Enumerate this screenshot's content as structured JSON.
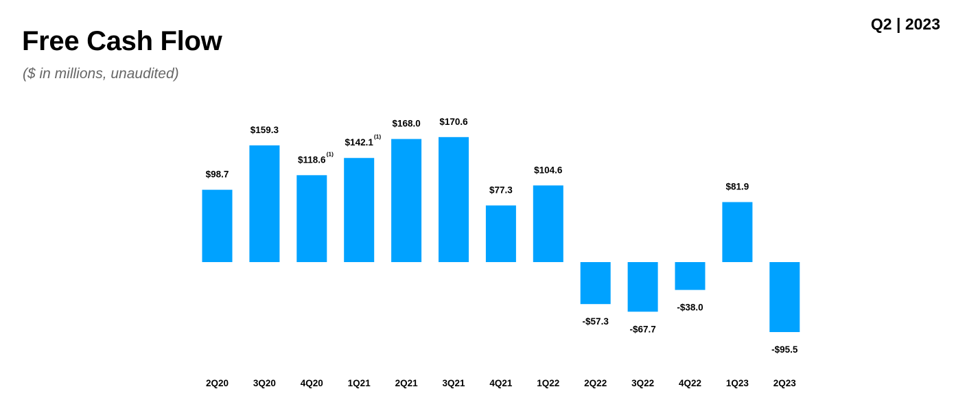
{
  "header": {
    "title": "Free Cash Flow",
    "subtitle": "($ in millions, unaudited)",
    "period": "Q2 | 2023"
  },
  "chart_data": {
    "type": "bar",
    "title": "Free Cash Flow",
    "subtitle": "($ in millions, unaudited)",
    "xlabel": "",
    "ylabel": "",
    "categories": [
      "2Q20",
      "3Q20",
      "4Q20",
      "1Q21",
      "2Q21",
      "3Q21",
      "4Q21",
      "1Q22",
      "2Q22",
      "3Q22",
      "4Q22",
      "1Q23",
      "2Q23"
    ],
    "values": [
      98.7,
      159.3,
      118.6,
      142.1,
      168.0,
      170.6,
      77.3,
      104.6,
      -57.3,
      -67.7,
      -38.0,
      81.9,
      -95.5
    ],
    "labels": [
      "$98.7",
      "$159.3",
      "$118.6",
      "$142.1",
      "$168.0",
      "$170.6",
      "$77.3",
      "$104.6",
      "-$57.3",
      "-$67.7",
      "-$38.0",
      "$81.9",
      "-$95.5"
    ],
    "footnotes": [
      "",
      "",
      "(1)",
      "(1)",
      "",
      "",
      "",
      "",
      "",
      "",
      "",
      "",
      ""
    ],
    "bar_color": "#00A2FF",
    "grid": false,
    "legend": "none"
  }
}
